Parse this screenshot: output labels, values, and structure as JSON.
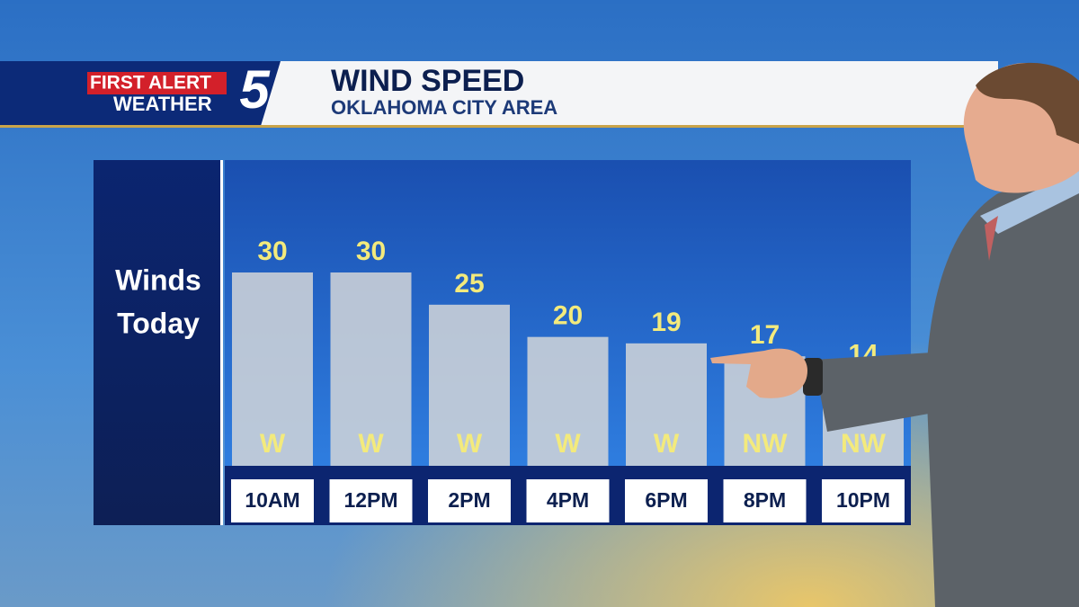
{
  "logo": {
    "first": "FIRST",
    "alert": "ALERT",
    "weather": "WEATHER",
    "number": "5"
  },
  "chart_data": {
    "type": "bar",
    "title": "WIND SPEED",
    "subtitle": "OKLAHOMA CITY AREA",
    "label_lines": [
      "Winds",
      "Today"
    ],
    "categories": [
      "10AM",
      "12PM",
      "2PM",
      "4PM",
      "6PM",
      "8PM",
      "10PM"
    ],
    "values": [
      30,
      30,
      25,
      20,
      19,
      17,
      14
    ],
    "directions": [
      "W",
      "W",
      "W",
      "W",
      "W",
      "NW",
      "NW"
    ],
    "color": "#d3d6d8"
  }
}
